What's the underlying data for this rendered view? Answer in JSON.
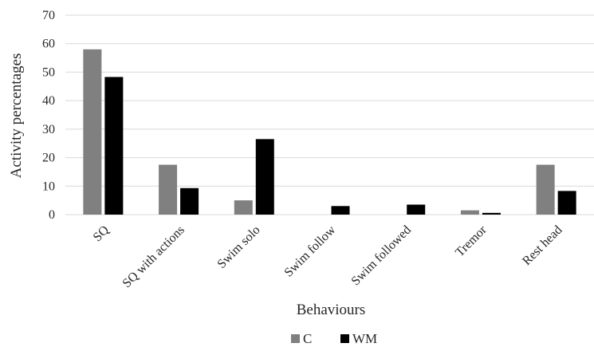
{
  "chart_data": {
    "type": "bar",
    "title": "",
    "xlabel": "Behaviours",
    "ylabel": "Activity percentages",
    "ylim": [
      0,
      70
    ],
    "yticks": [
      0,
      10,
      20,
      30,
      40,
      50,
      60,
      70
    ],
    "grid": true,
    "legend_position": "bottom",
    "categories": [
      "SQ",
      "SQ with actions",
      "Swim solo",
      "Swim follow",
      "Swim followed",
      "Tremor",
      "Rest head"
    ],
    "series": [
      {
        "name": "C",
        "color": "#808080",
        "values": [
          58,
          17.5,
          5,
          0,
          0,
          1.5,
          17.5
        ]
      },
      {
        "name": "WM",
        "color": "#000000",
        "values": [
          48.3,
          9.3,
          26.5,
          3,
          3.5,
          0.6,
          8.3
        ]
      }
    ]
  }
}
